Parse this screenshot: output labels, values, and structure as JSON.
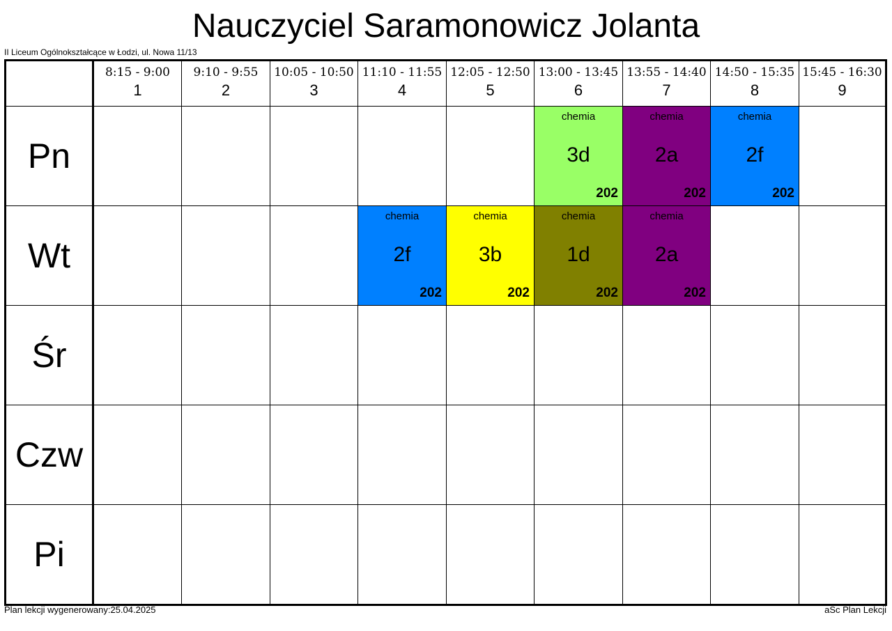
{
  "title": "Nauczyciel Saramonowicz Jolanta",
  "school": "II Liceum Ogólnokształcące w Łodzi, ul. Nowa 11/13",
  "footer": {
    "generated": "Plan lekcji wygenerowany:25.04.2025",
    "app": "aSc Plan Lekcji"
  },
  "periods": [
    {
      "time": "8:15 - 9:00",
      "num": "1"
    },
    {
      "time": "9:10 - 9:55",
      "num": "2"
    },
    {
      "time": "10:05 - 10:50",
      "num": "3"
    },
    {
      "time": "11:10 - 11:55",
      "num": "4"
    },
    {
      "time": "12:05 - 12:50",
      "num": "5"
    },
    {
      "time": "13:00 - 13:45",
      "num": "6"
    },
    {
      "time": "13:55 - 14:40",
      "num": "7"
    },
    {
      "time": "14:50 - 15:35",
      "num": "8"
    },
    {
      "time": "15:45 - 16:30",
      "num": "9"
    }
  ],
  "days": [
    "Pn",
    "Wt",
    "Śr",
    "Czw",
    "Pi"
  ],
  "lessons": {
    "pn6": {
      "subject": "chemia",
      "class": "3d",
      "room": "202",
      "color": "#99ff66"
    },
    "pn7": {
      "subject": "chemia",
      "class": "2a",
      "room": "202",
      "color": "#800080"
    },
    "pn8": {
      "subject": "chemia",
      "class": "2f",
      "room": "202",
      "color": "#0080ff"
    },
    "wt4": {
      "subject": "chemia",
      "class": "2f",
      "room": "202",
      "color": "#0080ff"
    },
    "wt5": {
      "subject": "chemia",
      "class": "3b",
      "room": "202",
      "color": "#ffff00"
    },
    "wt6": {
      "subject": "chemia",
      "class": "1d",
      "room": "202",
      "color": "#808000"
    },
    "wt7": {
      "subject": "chemia",
      "class": "2a",
      "room": "202",
      "color": "#800080"
    }
  }
}
